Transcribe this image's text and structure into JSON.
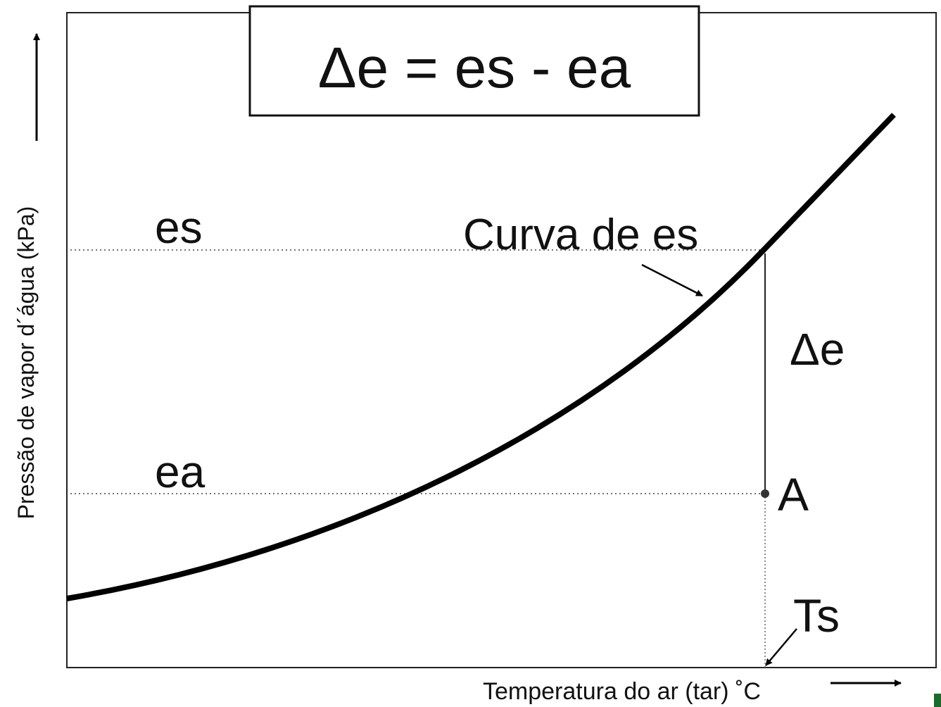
{
  "formula": "Δe = es - ea",
  "labels": {
    "es": "es",
    "ea": "ea",
    "curve": "Curva de es",
    "delta": "Δe",
    "point": "A",
    "ts": "Ts"
  },
  "axes": {
    "y_label": "Pressão de vapor d´água (kPa)",
    "x_label": "Temperatura do ar (tar) ˚C"
  }
}
